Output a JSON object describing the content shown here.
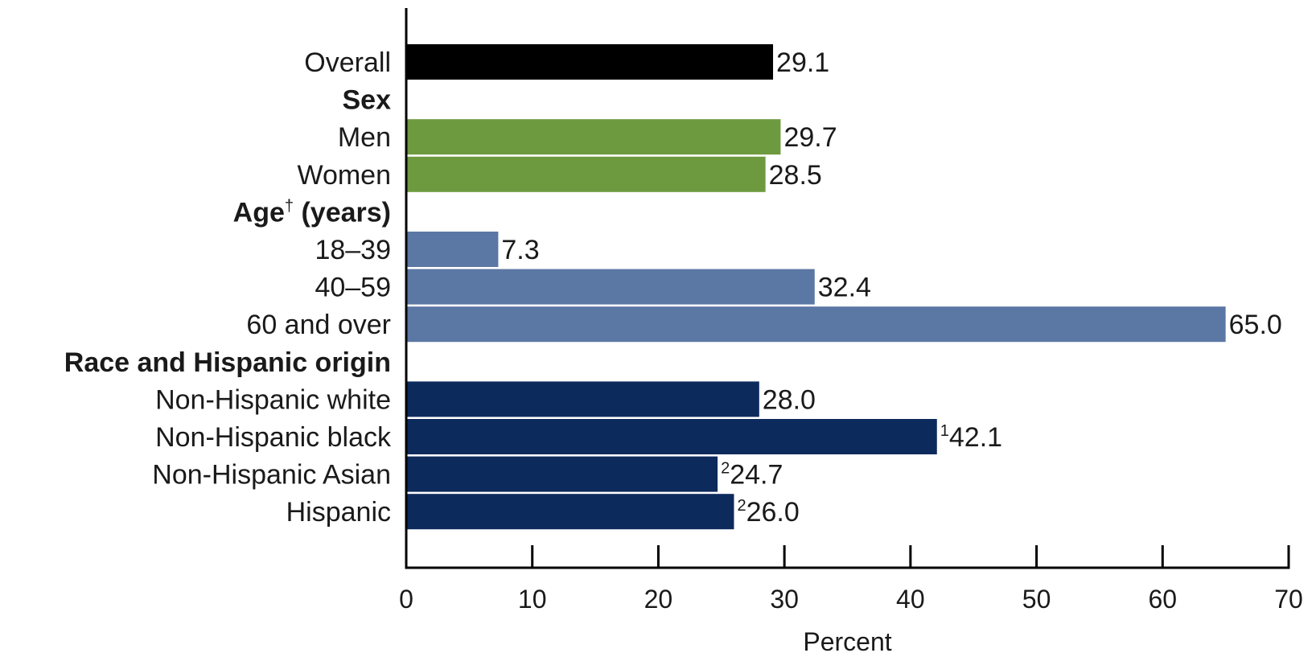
{
  "chart_data": {
    "type": "bar",
    "orientation": "horizontal",
    "title": "",
    "xlabel": "Percent",
    "ylabel": "",
    "xlim": [
      0,
      70
    ],
    "xticks": [
      0,
      10,
      20,
      30,
      40,
      50,
      60,
      70
    ],
    "grid": false,
    "legend": "none",
    "colors": {
      "overall": "#000000",
      "sex": "#6e9a3f",
      "age": "#5b77a4",
      "race": "#0d2a5c"
    },
    "rows": [
      {
        "kind": "bar",
        "label": "Overall",
        "value": 29.1,
        "value_label": "29.1",
        "marker": "",
        "group": "overall"
      },
      {
        "kind": "header",
        "label": "Sex",
        "sup": ""
      },
      {
        "kind": "bar",
        "label": "Men",
        "value": 29.7,
        "value_label": "29.7",
        "marker": "",
        "group": "sex"
      },
      {
        "kind": "bar",
        "label": "Women",
        "value": 28.5,
        "value_label": "28.5",
        "marker": "",
        "group": "sex"
      },
      {
        "kind": "header",
        "label": "Age",
        "sup": "†",
        "suffix": " (years)"
      },
      {
        "kind": "bar",
        "label": "18–39",
        "value": 7.3,
        "value_label": "7.3",
        "marker": "",
        "group": "age"
      },
      {
        "kind": "bar",
        "label": "40–59",
        "value": 32.4,
        "value_label": "32.4",
        "marker": "",
        "group": "age"
      },
      {
        "kind": "bar",
        "label": "60 and over",
        "value": 65.0,
        "value_label": "65.0",
        "marker": "",
        "group": "age"
      },
      {
        "kind": "header",
        "label": "Race and Hispanic origin",
        "sup": ""
      },
      {
        "kind": "bar",
        "label": "Non-Hispanic white",
        "value": 28.0,
        "value_label": "28.0",
        "marker": "",
        "group": "race"
      },
      {
        "kind": "bar",
        "label": "Non-Hispanic black",
        "value": 42.1,
        "value_label": "42.1",
        "marker": "1",
        "group": "race"
      },
      {
        "kind": "bar",
        "label": "Non-Hispanic Asian",
        "value": 24.7,
        "value_label": "24.7",
        "marker": "2",
        "group": "race"
      },
      {
        "kind": "bar",
        "label": "Hispanic",
        "value": 26.0,
        "value_label": "26.0",
        "marker": "2",
        "group": "race"
      }
    ]
  }
}
